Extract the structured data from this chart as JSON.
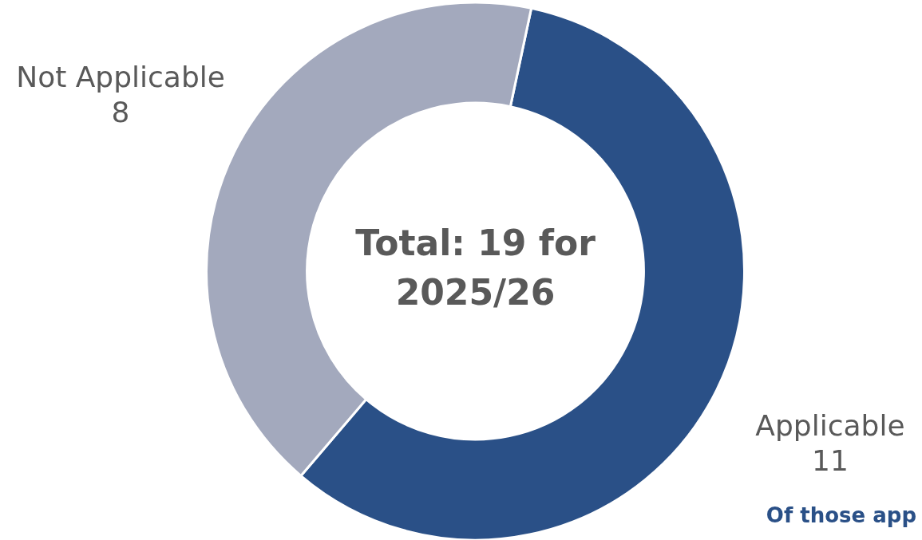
{
  "chart_data": {
    "type": "donut",
    "title": "Total: 19 for 2025/26",
    "categories": [
      "Applicable",
      "Not Applicable"
    ],
    "values": [
      11,
      8
    ],
    "colors": [
      "#2a5087",
      "#a3a9bd"
    ],
    "data_labels": true,
    "legend": false,
    "annotations": [
      "Of those app"
    ]
  }
}
